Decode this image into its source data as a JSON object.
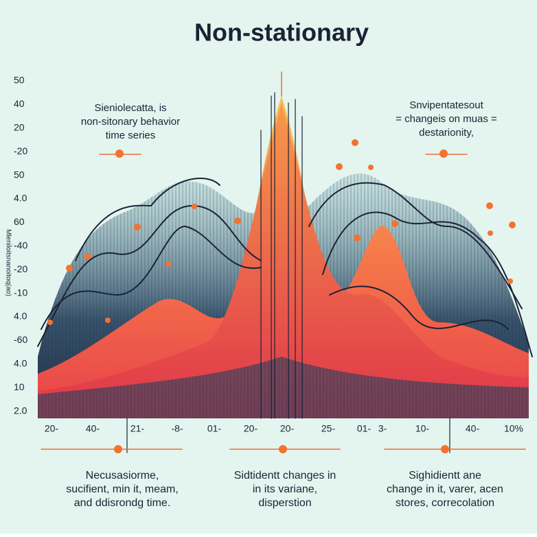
{
  "title": "Non-stationary",
  "y_axis_label": "Mleniloitsnanoitoq(ao)",
  "y_labels": [
    "50",
    "40",
    "20",
    "-20",
    "50",
    "4.0",
    "60",
    "-40",
    "-20",
    "-10",
    "4.0",
    "-60",
    "4.0",
    "10",
    "2.0"
  ],
  "x_labels": [
    "20-",
    "40-",
    "21-",
    "-8-",
    "01-",
    "20-",
    "20-",
    "25-",
    "01-",
    "3-",
    "10-",
    "40-",
    "10%"
  ],
  "top_left_note": [
    "Sieniolecatta, is",
    "non-sitonary behavior",
    "time series"
  ],
  "top_right_note": [
    "Snvipentatesout",
    "= changeis on muas =",
    "destarionity,"
  ],
  "bottom_notes": [
    [
      "Necusasiorme,",
      "sucifient, min it, meam,",
      "and ddisrondg time."
    ],
    [
      "Sidtidentt changes in",
      "in its variane,",
      "disperstion"
    ],
    [
      "Sighidientt ane",
      "change in it, varer, acen",
      "stores, correcolation"
    ]
  ]
}
